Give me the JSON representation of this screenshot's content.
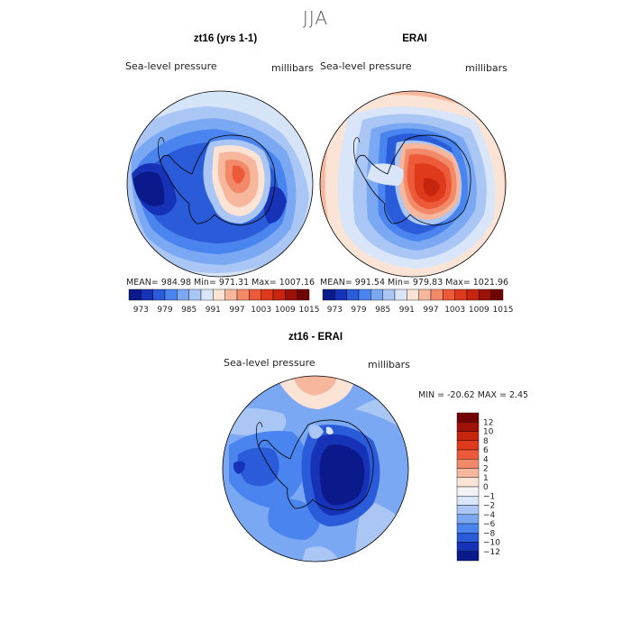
{
  "figure": {
    "season": "JJA"
  },
  "panels": {
    "left": {
      "title": "zt16 (yrs 1-1)",
      "field": "Sea-level pressure",
      "units": "millibars",
      "stats_line": "MEAN= 984.98    Min= 971.31    Max= 1007.16"
    },
    "right": {
      "title": "ERAI",
      "field": "Sea-level pressure",
      "units": "millibars",
      "stats_line": "MEAN= 991.54    Min= 979.83    Max= 1021.96"
    },
    "diff": {
      "title": "zt16 - ERAI",
      "field": "Sea-level pressure",
      "units": "millibars",
      "minmax_line": "MIN = -20.62  MAX =    2.45"
    }
  },
  "chart_data": {
    "type": "heatmap",
    "abs_colorbar": {
      "tick_labels": [
        "973",
        "979",
        "985",
        "991",
        "997",
        "1003",
        "1009",
        "1015"
      ],
      "colors": [
        "#0b1a8a",
        "#1633b8",
        "#2a5bd8",
        "#4a84ee",
        "#7aa8f2",
        "#a9c6f5",
        "#d9e6fa",
        "#fbe3d6",
        "#f7b79d",
        "#f28a6a",
        "#ec5a3a",
        "#e03a1c",
        "#c8250e",
        "#9c1208",
        "#700404"
      ]
    },
    "diff_colorbar": {
      "tick_labels": [
        "12",
        "10",
        "8",
        "6",
        "4",
        "2",
        "1",
        "0",
        "−1",
        "−2",
        "−4",
        "−6",
        "−8",
        "−10",
        "−12"
      ],
      "colors": [
        "#700404",
        "#a01208",
        "#c8250e",
        "#e03a1c",
        "#ec5a3a",
        "#f28a6a",
        "#f7b79d",
        "#fbe3d6",
        "#f2f2f5",
        "#d9e6fa",
        "#a9c6f5",
        "#7aa8f2",
        "#4a84ee",
        "#2a5bd8",
        "#1633b8",
        "#0b1a8a"
      ]
    },
    "projection": "south-polar stereographic"
  }
}
